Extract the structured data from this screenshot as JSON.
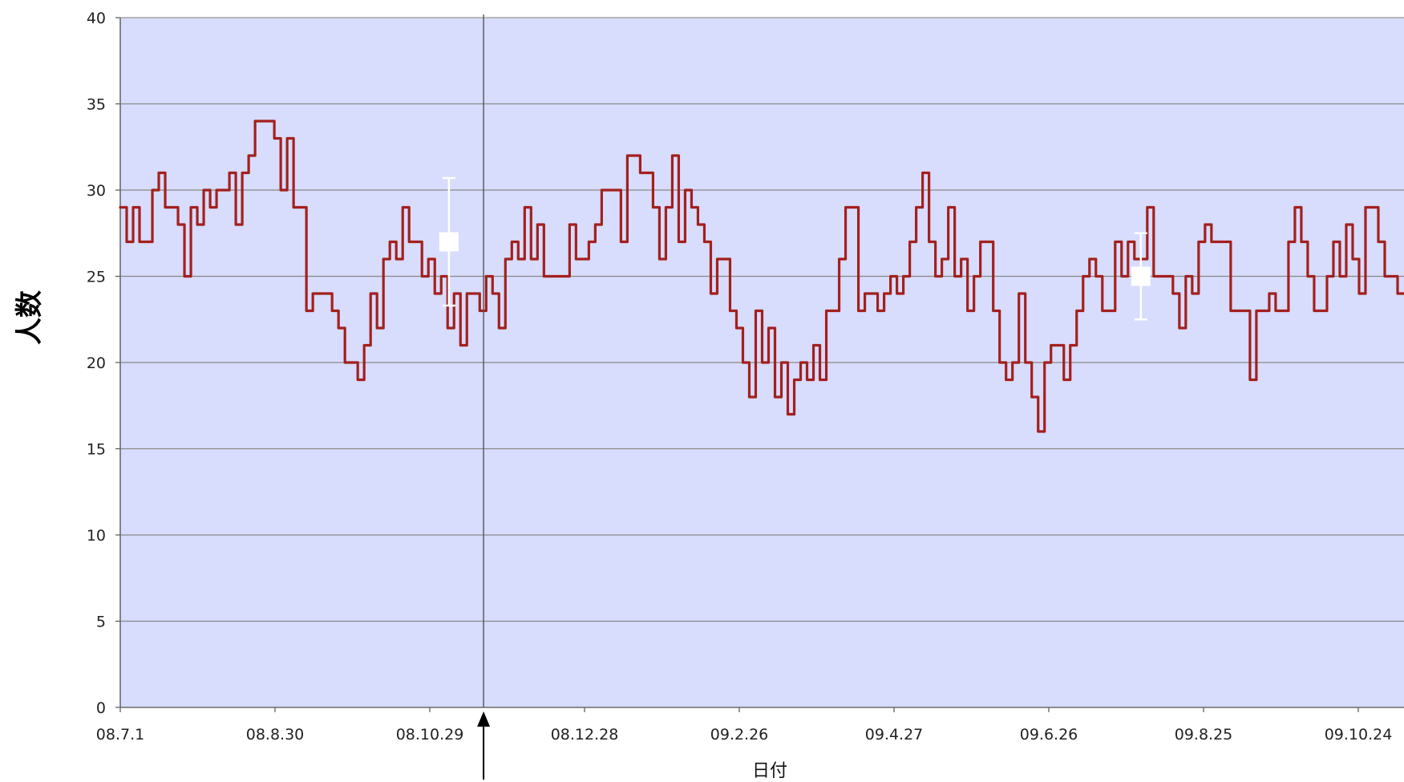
{
  "chart_data": {
    "type": "line",
    "title": "",
    "xlabel": "日付",
    "ylabel": "人数",
    "ylim": [
      0,
      40
    ],
    "yticks": [
      0,
      5,
      10,
      15,
      20,
      25,
      30,
      35,
      40
    ],
    "xtick_labels": [
      "08.7.1",
      "08.8.30",
      "08.10.29",
      "08.12.28",
      "09.2.26",
      "09.4.27",
      "09.6.26",
      "09.8.25",
      "09.10.24"
    ],
    "grid": true,
    "legend": "none",
    "colors": {
      "plot_background": "#d8dcfd",
      "line": "#a3201d",
      "gridline": "#888888",
      "marker": "#ffffff",
      "arrow": "#000000"
    },
    "series": [
      {
        "values": [
          29,
          27,
          29,
          27,
          27,
          30,
          31,
          29,
          29,
          28,
          25,
          29,
          28,
          30,
          29,
          30,
          30,
          31,
          28,
          31,
          32,
          34,
          34,
          34,
          33,
          30,
          33,
          29,
          29,
          23,
          24,
          24,
          24,
          23,
          22,
          20,
          20,
          19,
          21,
          24,
          22,
          26,
          27,
          26,
          29,
          27,
          27,
          25,
          26,
          24,
          25,
          22,
          24,
          21,
          24,
          24,
          23,
          25,
          24,
          22,
          26,
          27,
          26,
          29,
          26,
          28,
          25,
          25,
          25,
          25,
          28,
          26,
          26,
          27,
          28,
          30,
          30,
          30,
          27,
          32,
          32,
          31,
          31,
          29,
          26,
          29,
          32,
          27,
          30,
          29,
          28,
          27,
          24,
          26,
          26,
          23,
          22,
          20,
          18,
          23,
          20,
          22,
          18,
          20,
          17,
          19,
          20,
          19,
          21,
          19,
          23,
          23,
          26,
          29,
          29,
          23,
          24,
          24,
          23,
          24,
          25,
          24,
          25,
          27,
          29,
          31,
          27,
          25,
          26,
          29,
          25,
          26,
          23,
          25,
          27,
          27,
          23,
          20,
          19,
          20,
          24,
          20,
          18,
          16,
          20,
          21,
          21,
          19,
          21,
          23,
          25,
          26,
          25,
          23,
          23,
          27,
          25,
          27,
          26,
          26,
          29,
          25,
          25,
          25,
          24,
          22,
          25,
          24,
          27,
          28,
          27,
          27,
          27,
          23,
          23,
          23,
          19,
          23,
          23,
          24,
          23,
          23,
          27,
          29,
          27,
          25,
          23,
          23,
          25,
          27,
          25,
          28,
          26,
          24,
          29,
          29,
          27,
          25,
          25,
          24
        ]
      }
    ],
    "markers": [
      {
        "x": 0.256,
        "y": 27,
        "err_low": 23.3,
        "err_high": 30.7
      },
      {
        "x": 0.795,
        "y": 25,
        "err_low": 22.5,
        "err_high": 27.5
      }
    ],
    "annotations": [
      {
        "type": "vertical-line-arrow",
        "x": 0.283
      }
    ]
  }
}
